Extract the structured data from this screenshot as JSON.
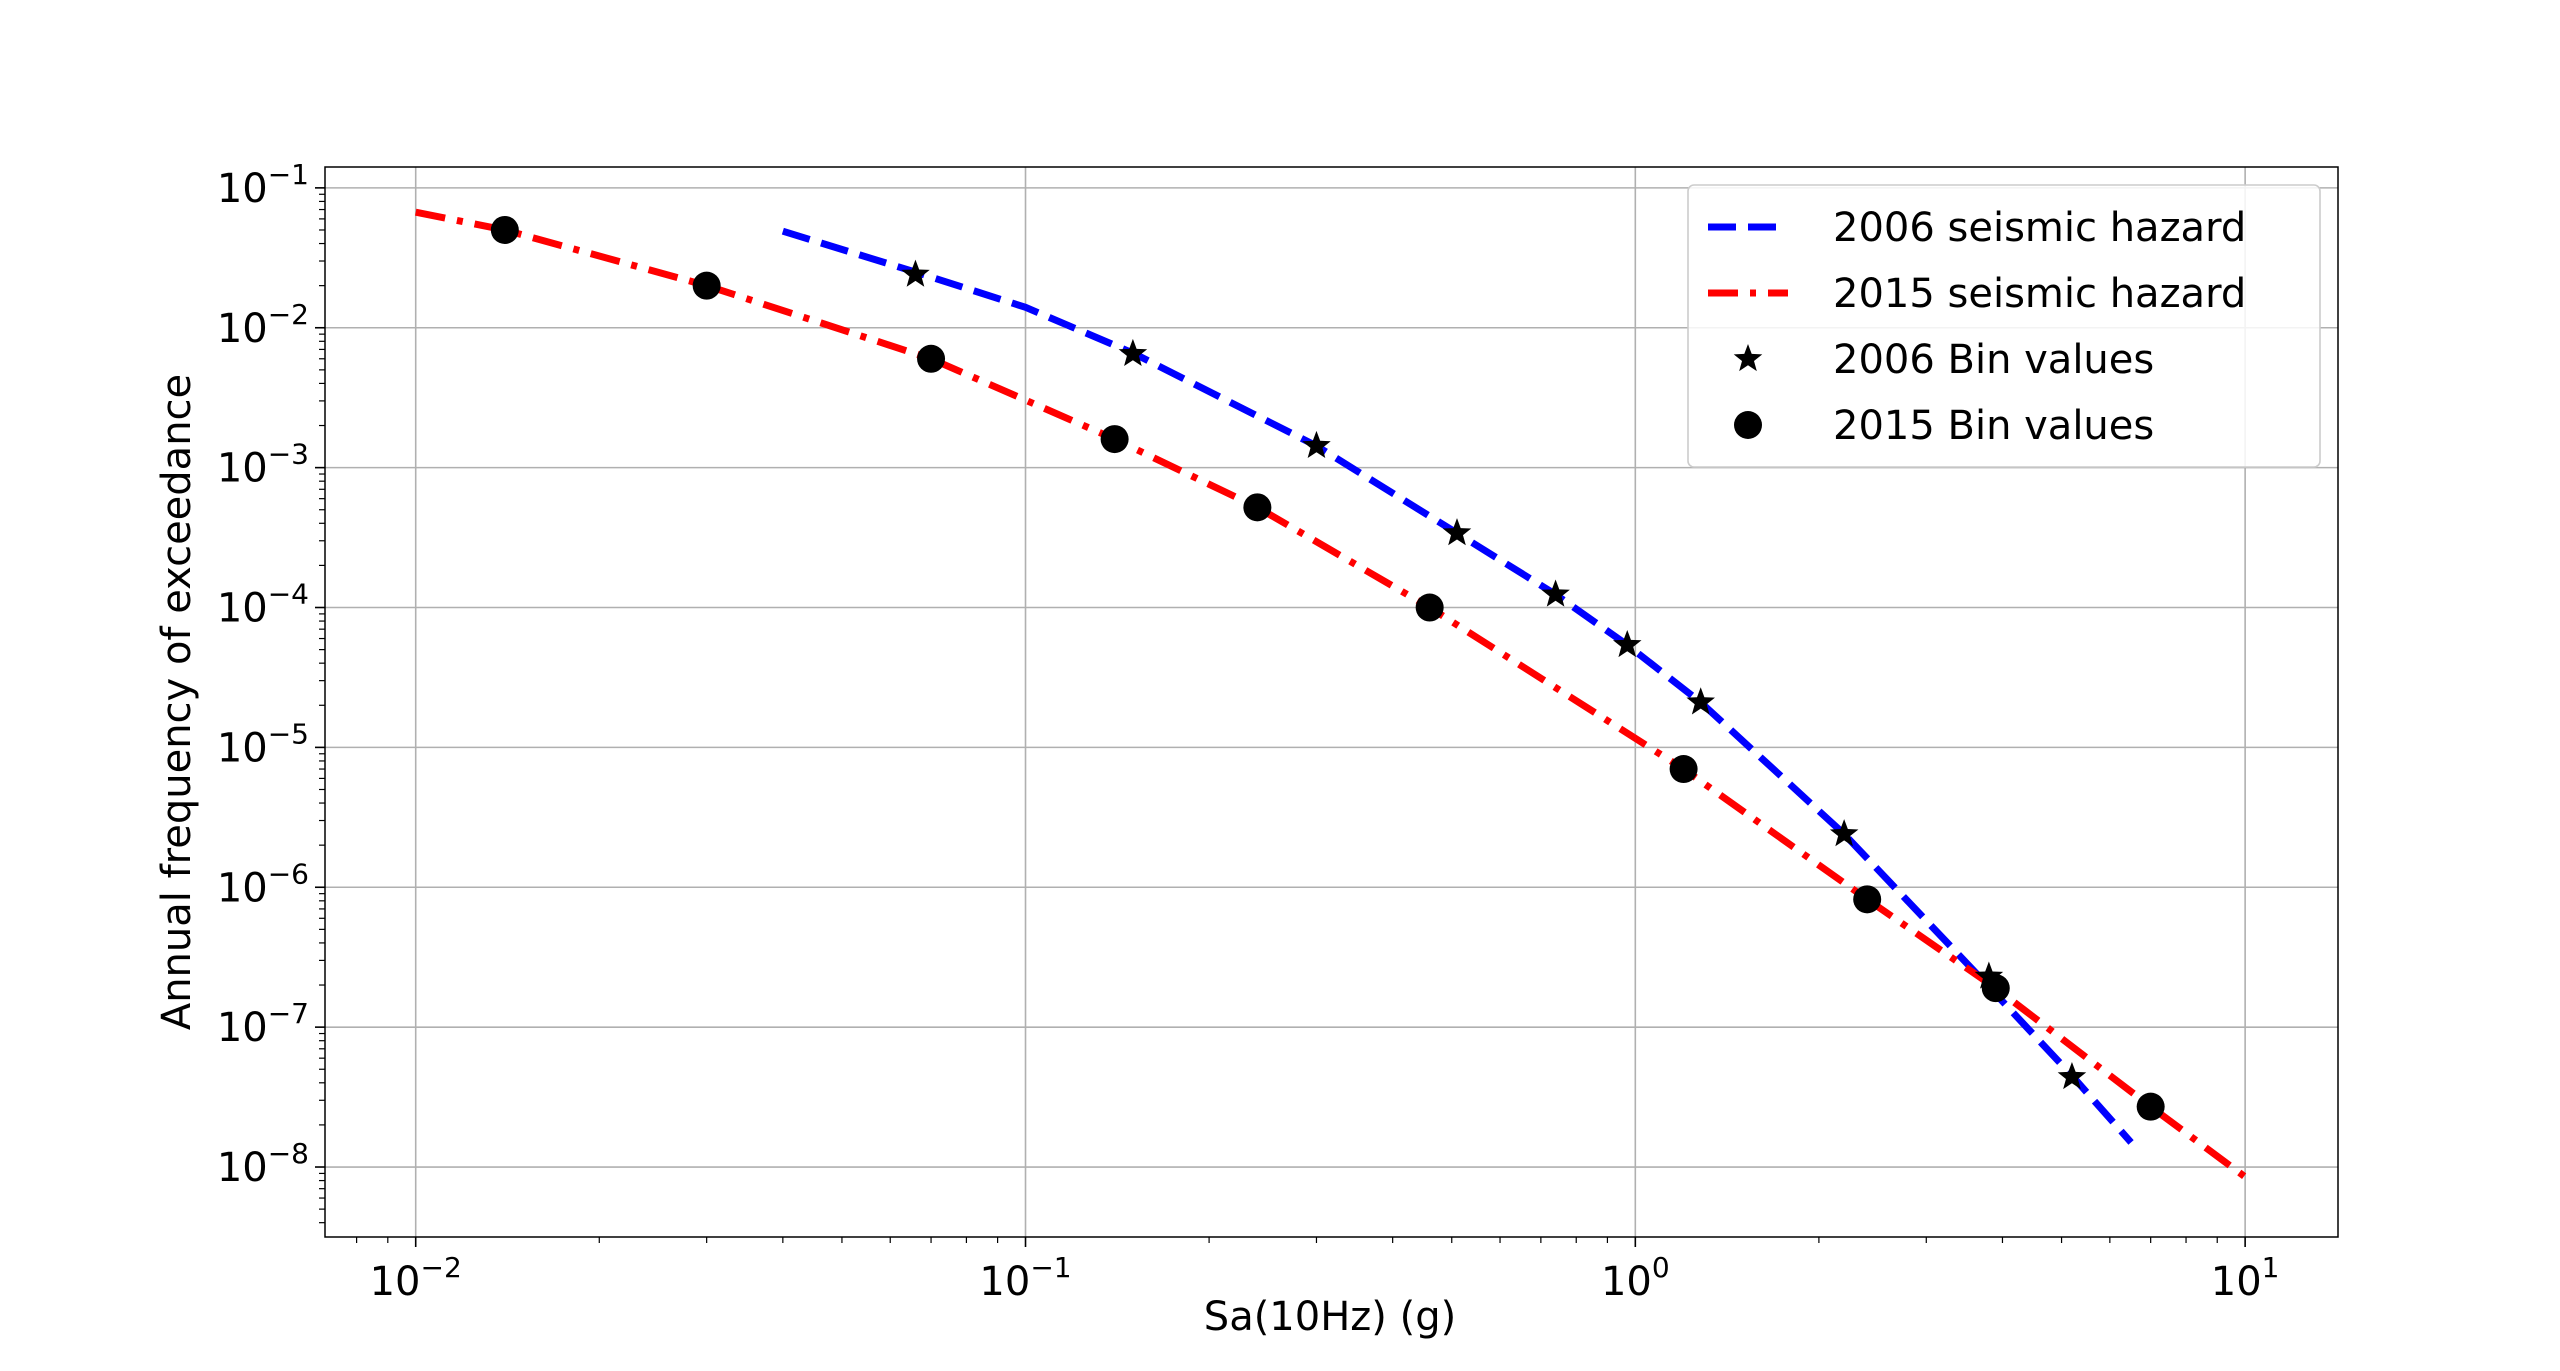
{
  "chart_data": {
    "type": "line",
    "xlabel": "Sa(10Hz) (g)",
    "ylabel": "Annual frequency of exceedance",
    "xscale": "log",
    "yscale": "log",
    "xlim": [
      0.0071,
      14.2
    ],
    "ylim": [
      3.16e-09,
      0.141
    ],
    "grid": true,
    "legend_position": "top-right",
    "x_ticks": [
      {
        "value": 0.01,
        "base": "10",
        "exp": "−2"
      },
      {
        "value": 0.1,
        "base": "10",
        "exp": "−1"
      },
      {
        "value": 1,
        "base": "10",
        "exp": "0"
      },
      {
        "value": 10,
        "base": "10",
        "exp": "1"
      }
    ],
    "y_ticks": [
      {
        "value": 0.1,
        "base": "10",
        "exp": "−1"
      },
      {
        "value": 0.01,
        "base": "10",
        "exp": "−2"
      },
      {
        "value": 0.001,
        "base": "10",
        "exp": "−3"
      },
      {
        "value": 0.0001,
        "base": "10",
        "exp": "−4"
      },
      {
        "value": 1e-05,
        "base": "10",
        "exp": "−5"
      },
      {
        "value": 1e-06,
        "base": "10",
        "exp": "−6"
      },
      {
        "value": 1e-07,
        "base": "10",
        "exp": "−7"
      },
      {
        "value": 1e-08,
        "base": "10",
        "exp": "−8"
      }
    ],
    "series": [
      {
        "name": "2006 seismic hazard",
        "kind": "line",
        "style": "dashed",
        "color": "#0000ff",
        "x": [
          0.04,
          0.066,
          0.1,
          0.15,
          0.3,
          0.51,
          0.74,
          0.97,
          1.28,
          2.2,
          3.6,
          5.2,
          6.5
        ],
        "y": [
          0.049,
          0.025,
          0.014,
          0.0066,
          0.00143,
          0.00034,
          0.000124,
          5.4e-05,
          2.1e-05,
          2.4e-06,
          2.5e-07,
          4.5e-08,
          1.5e-08
        ]
      },
      {
        "name": "2015 seismic hazard",
        "kind": "line",
        "style": "dashdot",
        "color": "#ff0000",
        "x": [
          0.01,
          0.014,
          0.03,
          0.07,
          0.14,
          0.24,
          0.46,
          1.2,
          2.4,
          3.9,
          7,
          10
        ],
        "y": [
          0.067,
          0.05,
          0.02,
          0.006,
          0.0016,
          0.00052,
          0.0001,
          7e-06,
          8.2e-07,
          1.9e-07,
          2.7e-08,
          8.5e-09
        ]
      },
      {
        "name": "2006 Bin values",
        "kind": "markers",
        "marker": "star",
        "color": "#000000",
        "x": [
          0.066,
          0.15,
          0.3,
          0.51,
          0.74,
          0.97,
          1.28,
          2.2,
          3.8,
          5.2
        ],
        "y": [
          0.024,
          0.0065,
          0.00143,
          0.00034,
          0.000124,
          5.4e-05,
          2.1e-05,
          2.4e-06,
          2.3e-07,
          4.4e-08
        ]
      },
      {
        "name": "2015 Bin values",
        "kind": "markers",
        "marker": "circle",
        "color": "#000000",
        "x": [
          0.014,
          0.03,
          0.07,
          0.14,
          0.24,
          0.46,
          1.2,
          2.4,
          3.9,
          7
        ],
        "y": [
          0.05,
          0.02,
          0.006,
          0.0016,
          0.00052,
          0.0001,
          7e-06,
          8.2e-07,
          1.9e-07,
          2.7e-08
        ]
      }
    ]
  }
}
